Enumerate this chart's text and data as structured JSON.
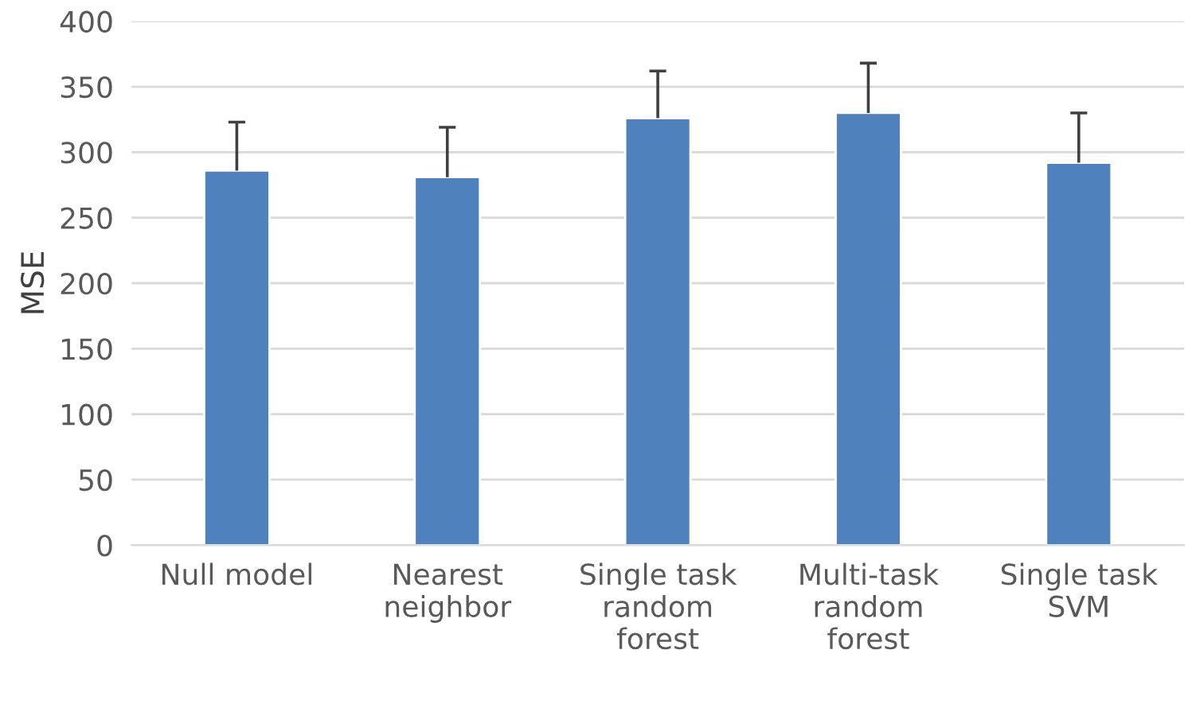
{
  "chart_data": {
    "type": "bar",
    "ylabel": "MSE",
    "categories": [
      "Null model",
      "Nearest\nneighbor",
      "Single task\nrandom\nforest",
      "Multi-task\nrandom\nforest",
      "Single task\nSVM"
    ],
    "values": [
      286,
      281,
      326,
      330,
      292
    ],
    "errors": [
      [
        286,
        323
      ],
      [
        281,
        319
      ],
      [
        326,
        362
      ],
      [
        330,
        368
      ],
      [
        292,
        330
      ]
    ],
    "color": "#4f81bd",
    "ylim": [
      0,
      400
    ],
    "yticks": [
      0,
      50,
      100,
      150,
      200,
      250,
      300,
      350,
      400
    ],
    "grid": "y"
  }
}
